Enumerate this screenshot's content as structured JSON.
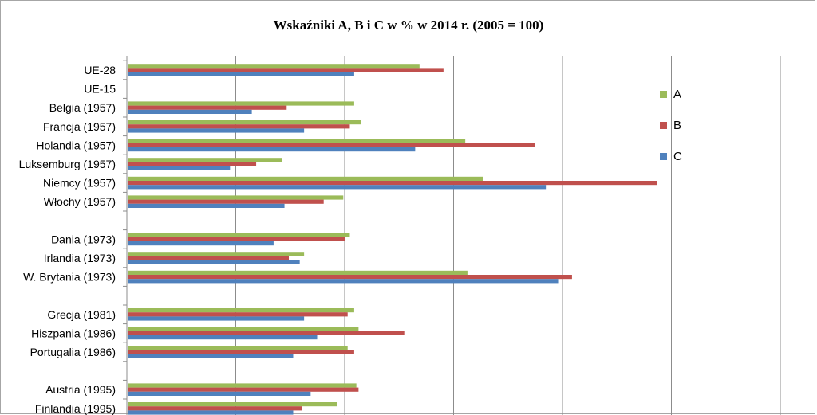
{
  "chart_data": {
    "type": "bar",
    "orientation": "horizontal",
    "title": "Wskaźniki A, B i C w % w 2014 r. (2005 = 100)",
    "xlabel": "",
    "ylabel": "",
    "grid": true,
    "legend_position": "right",
    "xlim": [
      0,
      300
    ],
    "categories": [
      "UE-28",
      "UE-15",
      "Belgia (1957)",
      "Francja (1957)",
      "Holandia (1957)",
      "Luksemburg (1957)",
      "Niemcy (1957)",
      "Włochy (1957)",
      "",
      "Dania (1973)",
      "Irlandia (1973)",
      "W. Brytania (1973)",
      "",
      "Grecja (1981)",
      "Hiszpania (1986)",
      "Portugalia (1986)",
      "",
      "Austria (1995)",
      "Finlandia (1995)"
    ],
    "series": [
      {
        "name": "A",
        "color": "#9bbb59",
        "values": [
          134,
          null,
          104,
          107,
          155,
          71,
          163,
          99,
          null,
          102,
          81,
          156,
          null,
          104,
          106,
          101,
          null,
          105,
          96
        ]
      },
      {
        "name": "B",
        "color": "#c0504d",
        "values": [
          145,
          null,
          73,
          102,
          187,
          59,
          243,
          90,
          null,
          100,
          74,
          204,
          null,
          101,
          127,
          104,
          null,
          106,
          80
        ]
      },
      {
        "name": "C",
        "color": "#4f81bd",
        "values": [
          104,
          null,
          57,
          81,
          132,
          47,
          192,
          72,
          null,
          67,
          79,
          198,
          null,
          81,
          87,
          76,
          null,
          84,
          76
        ]
      }
    ]
  }
}
